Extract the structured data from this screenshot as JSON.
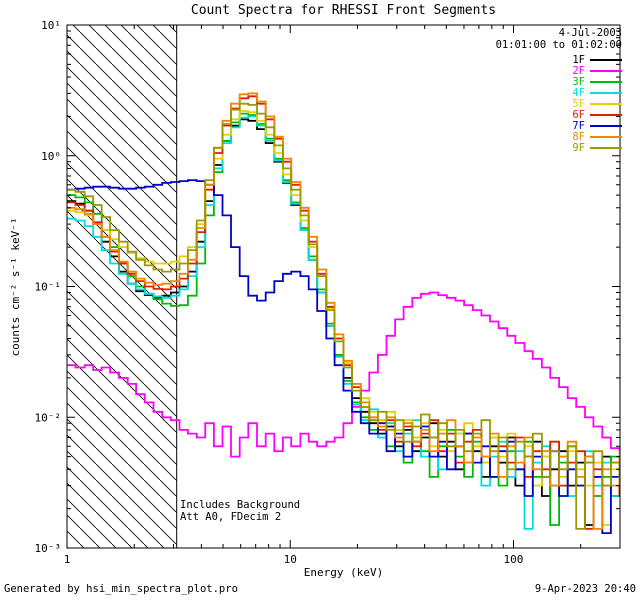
{
  "page": {
    "footer_left": "Generated by hsi_min_spectra_plot.pro",
    "footer_right": "9-Apr-2023 20:40"
  },
  "chart_data": {
    "type": "line",
    "title": "Count Spectra for RHESSI Front Segments",
    "xlabel": "Energy (keV)",
    "ylabel": "counts cm⁻² s⁻¹ keV⁻¹",
    "xscale": "log",
    "yscale": "log",
    "xlim": [
      1,
      300
    ],
    "ylim": [
      0.001,
      10
    ],
    "step": true,
    "grid": false,
    "legend_position": "top-right",
    "annotations": {
      "date": "4-Jul-2003",
      "time_range": "01:01:00 to 01:02:00",
      "note1": "Includes Background",
      "note2": "Att A0, FDecim 2"
    },
    "hatch_region": {
      "xmin": 1,
      "xmax": 3.1,
      "style": "diagonal-hatch"
    },
    "x_ticks": [
      {
        "value": 1,
        "label": "1"
      },
      {
        "value": 10,
        "label": "10"
      },
      {
        "value": 100,
        "label": "100"
      }
    ],
    "y_ticks": [
      {
        "value": 0.001,
        "label": "10⁻³"
      },
      {
        "value": 0.01,
        "label": "10⁻²"
      },
      {
        "value": 0.1,
        "label": "10⁻¹"
      },
      {
        "value": 1,
        "label": "10⁰"
      },
      {
        "value": 10,
        "label": "10¹"
      }
    ],
    "energies": [
      1.0,
      1.09,
      1.2,
      1.31,
      1.43,
      1.56,
      1.71,
      1.87,
      2.04,
      2.23,
      2.44,
      2.67,
      2.92,
      3.19,
      3.48,
      3.81,
      4.16,
      4.55,
      4.97,
      5.43,
      5.94,
      6.49,
      7.1,
      7.76,
      8.48,
      9.27,
      10.1,
      11.1,
      12.1,
      13.2,
      14.5,
      15.8,
      17.3,
      18.9,
      20.7,
      22.6,
      24.7,
      27.0,
      29.5,
      32.2,
      35.2,
      38.5,
      42.1,
      46.0,
      50.3,
      55.0,
      60.1,
      65.7,
      71.8,
      78.5,
      85.8,
      93.8,
      102,
      112,
      122,
      134,
      146,
      160,
      175,
      191,
      209,
      228,
      250,
      273,
      298
    ],
    "series": [
      {
        "name": "1F",
        "color": "#000000",
        "values": [
          0.45,
          0.43,
          0.38,
          0.3,
          0.22,
          0.17,
          0.13,
          0.105,
          0.092,
          0.086,
          0.082,
          0.085,
          0.09,
          0.1,
          0.13,
          0.22,
          0.45,
          0.85,
          1.3,
          1.7,
          1.9,
          1.85,
          1.6,
          1.25,
          0.9,
          0.62,
          0.42,
          0.27,
          0.16,
          0.09,
          0.05,
          0.03,
          0.02,
          0.014,
          0.011,
          0.009,
          0.0075,
          0.0085,
          0.006,
          0.008,
          0.0055,
          0.007,
          0.009,
          0.005,
          0.0065,
          0.004,
          0.0075,
          0.0055,
          0.0035,
          0.006,
          0.0045,
          0.007,
          0.003,
          0.005,
          0.0065,
          0.0025,
          0.004,
          0.0055,
          0.003,
          0.0045,
          0.0015,
          0.0035,
          0.005,
          0.0025,
          0.004
        ]
      },
      {
        "name": "2F",
        "color": "#ff00ff",
        "values": [
          0.025,
          0.024,
          0.025,
          0.023,
          0.024,
          0.022,
          0.02,
          0.018,
          0.015,
          0.013,
          0.011,
          0.01,
          0.0095,
          0.008,
          0.0075,
          0.007,
          0.009,
          0.006,
          0.0085,
          0.005,
          0.007,
          0.009,
          0.006,
          0.0075,
          0.0055,
          0.007,
          0.006,
          0.0075,
          0.0065,
          0.006,
          0.0065,
          0.007,
          0.009,
          0.012,
          0.016,
          0.022,
          0.03,
          0.042,
          0.056,
          0.07,
          0.082,
          0.088,
          0.09,
          0.086,
          0.082,
          0.078,
          0.072,
          0.066,
          0.06,
          0.054,
          0.048,
          0.042,
          0.037,
          0.032,
          0.028,
          0.024,
          0.02,
          0.017,
          0.014,
          0.012,
          0.01,
          0.0085,
          0.007,
          0.0058,
          0.0048
        ]
      },
      {
        "name": "3F",
        "color": "#00bb00",
        "values": [
          0.5,
          0.48,
          0.44,
          0.36,
          0.27,
          0.2,
          0.15,
          0.12,
          0.1,
          0.088,
          0.08,
          0.074,
          0.071,
          0.072,
          0.085,
          0.15,
          0.35,
          0.75,
          1.3,
          1.8,
          2.1,
          2.05,
          1.75,
          1.35,
          0.95,
          0.65,
          0.44,
          0.28,
          0.17,
          0.095,
          0.052,
          0.03,
          0.019,
          0.013,
          0.01,
          0.008,
          0.0095,
          0.006,
          0.008,
          0.0045,
          0.007,
          0.0055,
          0.0035,
          0.006,
          0.008,
          0.005,
          0.0035,
          0.0065,
          0.0045,
          0.007,
          0.003,
          0.0055,
          0.004,
          0.0065,
          0.0035,
          0.005,
          0.0015,
          0.0045,
          0.006,
          0.003,
          0.0045,
          0.0025,
          0.0035,
          0.005,
          0.003
        ]
      },
      {
        "name": "4F",
        "color": "#00dddd",
        "values": [
          0.33,
          0.32,
          0.29,
          0.24,
          0.19,
          0.15,
          0.125,
          0.105,
          0.095,
          0.088,
          0.084,
          0.082,
          0.085,
          0.095,
          0.12,
          0.2,
          0.42,
          0.8,
          1.25,
          1.65,
          1.95,
          2.0,
          1.7,
          1.3,
          0.92,
          0.63,
          0.43,
          0.27,
          0.16,
          0.09,
          0.05,
          0.029,
          0.018,
          0.0125,
          0.0095,
          0.0115,
          0.007,
          0.009,
          0.0055,
          0.0075,
          0.0095,
          0.005,
          0.007,
          0.004,
          0.006,
          0.0075,
          0.0045,
          0.006,
          0.003,
          0.005,
          0.0065,
          0.0035,
          0.0055,
          0.0014,
          0.0045,
          0.006,
          0.003,
          0.005,
          0.0025,
          0.004,
          0.0055,
          0.003,
          0.0045,
          0.0025,
          0.0035
        ]
      },
      {
        "name": "5F",
        "color": "#e3d200",
        "values": [
          0.38,
          0.37,
          0.35,
          0.31,
          0.27,
          0.23,
          0.2,
          0.18,
          0.165,
          0.155,
          0.15,
          0.15,
          0.155,
          0.17,
          0.2,
          0.3,
          0.55,
          0.95,
          1.45,
          1.9,
          2.2,
          2.15,
          1.85,
          1.45,
          1.05,
          0.72,
          0.5,
          0.32,
          0.2,
          0.12,
          0.068,
          0.04,
          0.026,
          0.018,
          0.014,
          0.011,
          0.0095,
          0.011,
          0.008,
          0.0095,
          0.007,
          0.009,
          0.006,
          0.008,
          0.0055,
          0.0075,
          0.009,
          0.006,
          0.0045,
          0.007,
          0.005,
          0.0075,
          0.0045,
          0.006,
          0.003,
          0.005,
          0.0065,
          0.0035,
          0.0055,
          0.004,
          0.003,
          0.0045,
          0.0015,
          0.004,
          0.0055
        ]
      },
      {
        "name": "6F",
        "color": "#dd2200",
        "values": [
          0.44,
          0.42,
          0.38,
          0.31,
          0.24,
          0.185,
          0.15,
          0.125,
          0.11,
          0.1,
          0.096,
          0.095,
          0.1,
          0.115,
          0.15,
          0.26,
          0.55,
          1.05,
          1.7,
          2.3,
          2.75,
          2.85,
          2.5,
          1.9,
          1.35,
          0.9,
          0.6,
          0.38,
          0.22,
          0.125,
          0.07,
          0.04,
          0.025,
          0.017,
          0.012,
          0.0095,
          0.008,
          0.0095,
          0.0065,
          0.0085,
          0.006,
          0.0075,
          0.0095,
          0.0055,
          0.0075,
          0.0045,
          0.0065,
          0.008,
          0.005,
          0.0035,
          0.006,
          0.0045,
          0.007,
          0.0035,
          0.0055,
          0.004,
          0.0065,
          0.003,
          0.0045,
          0.0055,
          0.0014,
          0.004,
          0.003,
          0.0045,
          0.0025
        ]
      },
      {
        "name": "7F",
        "color": "#0000cc",
        "values": [
          0.55,
          0.56,
          0.57,
          0.58,
          0.58,
          0.57,
          0.56,
          0.56,
          0.57,
          0.58,
          0.6,
          0.62,
          0.63,
          0.64,
          0.65,
          0.64,
          0.6,
          0.5,
          0.35,
          0.2,
          0.12,
          0.085,
          0.078,
          0.09,
          0.11,
          0.125,
          0.13,
          0.12,
          0.095,
          0.065,
          0.04,
          0.025,
          0.016,
          0.011,
          0.009,
          0.0075,
          0.009,
          0.0055,
          0.0075,
          0.005,
          0.0065,
          0.0085,
          0.005,
          0.0065,
          0.004,
          0.006,
          0.0075,
          0.0045,
          0.006,
          0.0035,
          0.0055,
          0.0065,
          0.004,
          0.0025,
          0.005,
          0.0035,
          0.0055,
          0.0025,
          0.004,
          0.003,
          0.005,
          0.0035,
          0.0013,
          0.0035,
          0.0045
        ]
      },
      {
        "name": "8F",
        "color": "#ee8800",
        "values": [
          0.4,
          0.39,
          0.36,
          0.3,
          0.24,
          0.19,
          0.155,
          0.13,
          0.115,
          0.107,
          0.103,
          0.105,
          0.11,
          0.125,
          0.16,
          0.28,
          0.6,
          1.15,
          1.85,
          2.5,
          2.95,
          3.0,
          2.6,
          2.0,
          1.4,
          0.95,
          0.63,
          0.4,
          0.24,
          0.135,
          0.075,
          0.043,
          0.027,
          0.018,
          0.013,
          0.01,
          0.0085,
          0.01,
          0.007,
          0.009,
          0.0065,
          0.008,
          0.0055,
          0.0075,
          0.0095,
          0.006,
          0.0045,
          0.007,
          0.005,
          0.0075,
          0.0035,
          0.006,
          0.0045,
          0.007,
          0.004,
          0.0055,
          0.003,
          0.005,
          0.0065,
          0.0035,
          0.005,
          0.0014,
          0.004,
          0.003,
          0.005
        ]
      },
      {
        "name": "9F",
        "color": "#999900",
        "values": [
          0.55,
          0.53,
          0.49,
          0.42,
          0.34,
          0.27,
          0.22,
          0.185,
          0.16,
          0.145,
          0.135,
          0.13,
          0.135,
          0.15,
          0.19,
          0.32,
          0.65,
          1.15,
          1.75,
          2.25,
          2.5,
          2.45,
          2.1,
          1.65,
          1.2,
          0.8,
          0.55,
          0.35,
          0.21,
          0.12,
          0.066,
          0.038,
          0.024,
          0.016,
          0.012,
          0.0095,
          0.011,
          0.008,
          0.0095,
          0.0065,
          0.0085,
          0.0105,
          0.007,
          0.009,
          0.006,
          0.008,
          0.0055,
          0.0075,
          0.0095,
          0.0055,
          0.007,
          0.004,
          0.0065,
          0.005,
          0.0075,
          0.0035,
          0.0055,
          0.004,
          0.006,
          0.0014,
          0.0045,
          0.0055,
          0.003,
          0.0045,
          0.0035
        ]
      }
    ]
  }
}
